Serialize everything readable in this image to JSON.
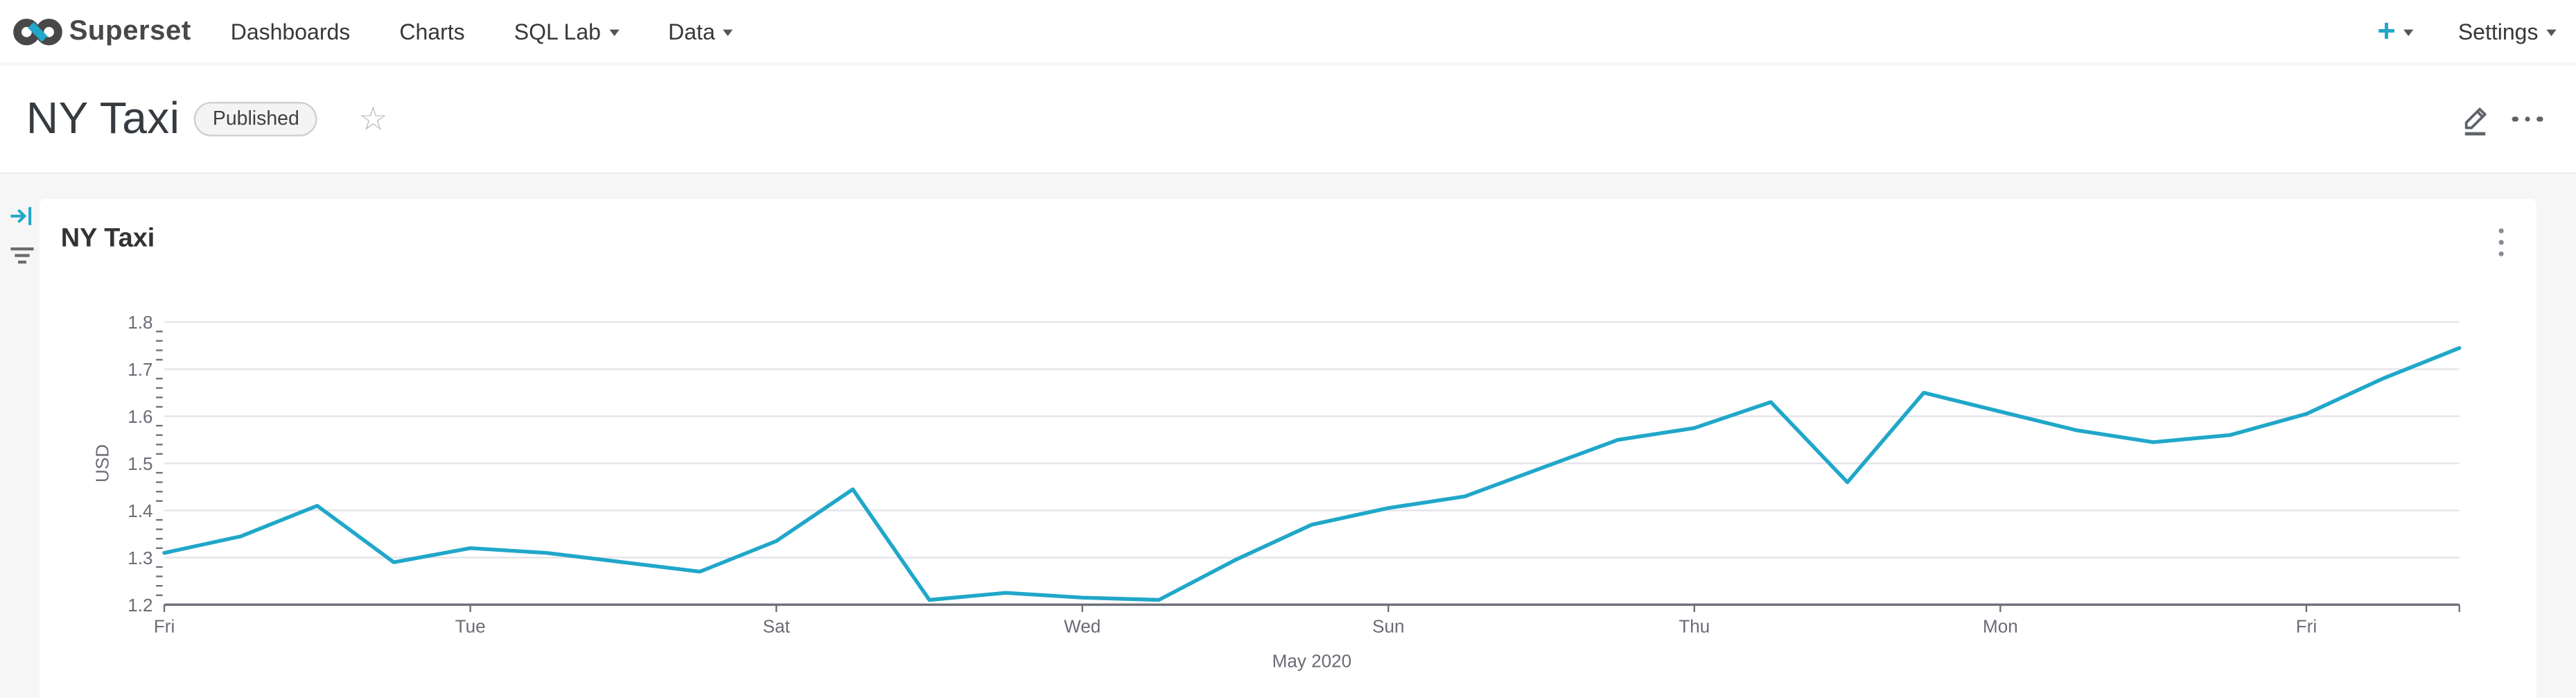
{
  "navbar": {
    "brand": "Superset",
    "items": [
      {
        "label": "Dashboards",
        "has_caret": false
      },
      {
        "label": "Charts",
        "has_caret": false
      },
      {
        "label": "SQL Lab",
        "has_caret": true
      },
      {
        "label": "Data",
        "has_caret": true
      }
    ],
    "plus_label": "+",
    "settings_label": "Settings"
  },
  "header": {
    "title": "NY Taxi",
    "badge": "Published",
    "star_icon": "☆"
  },
  "chart_card": {
    "title": "NY Taxi"
  },
  "colors": {
    "accent": "#20A7C9",
    "dashboard_bg": "#f6f6f7",
    "card_bg": "#ffffff",
    "grid_color": "#e3e3ea",
    "axis_color": "#6e7079",
    "axis_text_color": "#6b6b76",
    "series_color": "#20A7C9"
  },
  "chart_data": {
    "type": "line",
    "title": "NY Taxi",
    "xlabel": "May 2020",
    "ylabel": "USD",
    "ylim": [
      1.2,
      1.8
    ],
    "y_ticks": [
      1.2,
      1.3,
      1.4,
      1.5,
      1.6,
      1.7,
      1.8
    ],
    "minor_tick_step": 0.02,
    "grid": true,
    "legend_position": "none",
    "x": [
      "2020-05-01",
      "2020-05-02",
      "2020-05-03",
      "2020-05-04",
      "2020-05-05",
      "2020-05-06",
      "2020-05-07",
      "2020-05-08",
      "2020-05-09",
      "2020-05-10",
      "2020-05-11",
      "2020-05-12",
      "2020-05-13",
      "2020-05-14",
      "2020-05-15",
      "2020-05-16",
      "2020-05-17",
      "2020-05-18",
      "2020-05-19",
      "2020-05-20",
      "2020-05-21",
      "2020-05-22",
      "2020-05-23",
      "2020-05-24",
      "2020-05-25",
      "2020-05-26",
      "2020-05-27",
      "2020-05-28",
      "2020-05-29",
      "2020-05-30",
      "2020-05-31"
    ],
    "values": [
      1.31,
      1.345,
      1.41,
      1.29,
      1.32,
      1.31,
      1.29,
      1.27,
      1.335,
      1.445,
      1.21,
      1.225,
      1.215,
      1.21,
      1.295,
      1.37,
      1.405,
      1.43,
      1.49,
      1.55,
      1.575,
      1.63,
      1.46,
      1.65,
      1.61,
      1.57,
      1.545,
      1.56,
      1.605,
      1.68,
      1.745
    ],
    "x_tick_positions": [
      0,
      4,
      8,
      12,
      16,
      20,
      24,
      28,
      30
    ],
    "x_tick_labels": [
      "Fri",
      "Tue",
      "Sat",
      "Wed",
      "Sun",
      "Thu",
      "Mon",
      "Fri",
      ""
    ]
  }
}
